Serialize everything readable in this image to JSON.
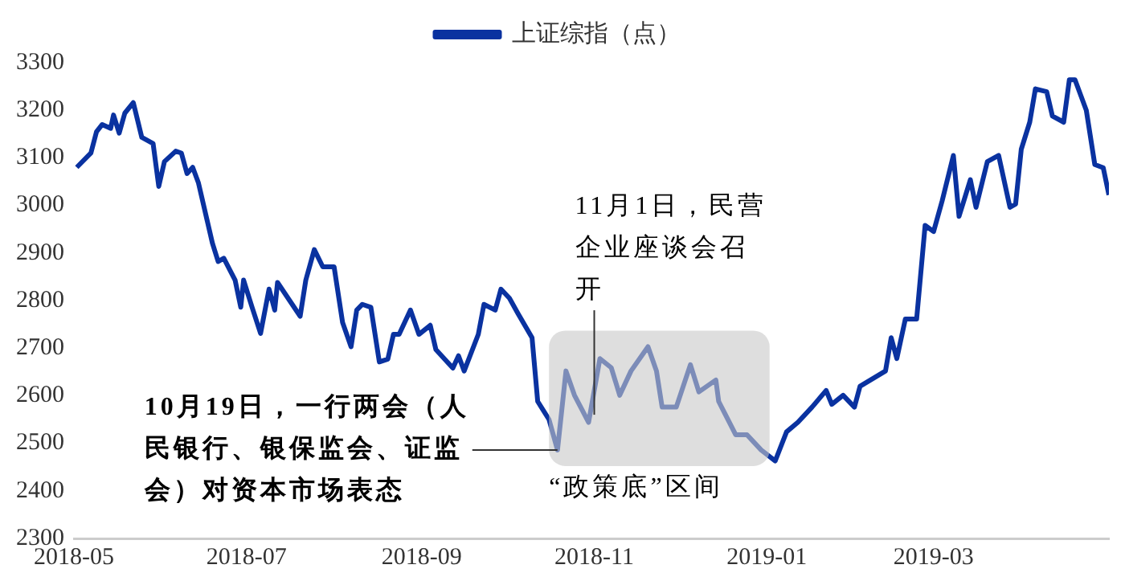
{
  "chart_data": {
    "type": "line",
    "legend": "top",
    "x": [
      "2018-05-02",
      "2018-05-07",
      "2018-05-09",
      "2018-05-11",
      "2018-05-14",
      "2018-05-15",
      "2018-05-17",
      "2018-05-19",
      "2018-05-22",
      "2018-05-25",
      "2018-05-29",
      "2018-05-31",
      "2018-06-02",
      "2018-06-06",
      "2018-06-08",
      "2018-06-10",
      "2018-06-12",
      "2018-06-14",
      "2018-06-19",
      "2018-06-21",
      "2018-06-23",
      "2018-06-27",
      "2018-06-29",
      "2018-06-30",
      "2018-07-03",
      "2018-07-06",
      "2018-07-09",
      "2018-07-11",
      "2018-07-12",
      "2018-07-20",
      "2018-07-22",
      "2018-07-25",
      "2018-07-28",
      "2018-08-01",
      "2018-08-04",
      "2018-08-07",
      "2018-08-09",
      "2018-08-11",
      "2018-08-14",
      "2018-08-17",
      "2018-08-20",
      "2018-08-22",
      "2018-08-24",
      "2018-08-28",
      "2018-08-31",
      "2018-09-04",
      "2018-09-06",
      "2018-09-12",
      "2018-09-14",
      "2018-09-16",
      "2018-09-21",
      "2018-09-23",
      "2018-09-27",
      "2018-09-29",
      "2018-10-02",
      "2018-10-05",
      "2018-10-10",
      "2018-10-12",
      "2018-10-16",
      "2018-10-19",
      "2018-10-22",
      "2018-10-25",
      "2018-10-30",
      "2018-11-03",
      "2018-11-07",
      "2018-11-10",
      "2018-11-14",
      "2018-11-20",
      "2018-11-23",
      "2018-11-25",
      "2018-11-30",
      "2018-12-05",
      "2018-12-08",
      "2018-12-14",
      "2018-12-15",
      "2018-12-21",
      "2018-12-25",
      "2018-12-30",
      "2019-01-04",
      "2019-01-08",
      "2019-01-12",
      "2019-01-17",
      "2019-01-22",
      "2019-01-24",
      "2019-01-28",
      "2019-02-01",
      "2019-02-03",
      "2019-02-12",
      "2019-02-14",
      "2019-02-16",
      "2019-02-19",
      "2019-02-23",
      "2019-02-26",
      "2019-03-01",
      "2019-03-04",
      "2019-03-08",
      "2019-03-10",
      "2019-03-14",
      "2019-03-16",
      "2019-03-20",
      "2019-03-24",
      "2019-03-28",
      "2019-03-30",
      "2019-04-01",
      "2019-04-04",
      "2019-04-06",
      "2019-04-10",
      "2019-04-12",
      "2019-04-16",
      "2019-04-18",
      "2019-04-20",
      "2019-04-24",
      "2019-04-27",
      "2019-04-30",
      "2019-05-02"
    ],
    "series": [
      {
        "name": "上证综指（点）",
        "color": "#0a32a0",
        "values": [
          3080,
          3110,
          3155,
          3170,
          3162,
          3190,
          3152,
          3194,
          3216,
          3143,
          3130,
          3040,
          3092,
          3114,
          3110,
          3067,
          3080,
          3048,
          2920,
          2882,
          2889,
          2843,
          2786,
          2843,
          2786,
          2731,
          2824,
          2780,
          2838,
          2767,
          2843,
          2907,
          2871,
          2871,
          2754,
          2703,
          2780,
          2792,
          2786,
          2671,
          2677,
          2729,
          2729,
          2780,
          2729,
          2748,
          2697,
          2658,
          2684,
          2652,
          2729,
          2792,
          2780,
          2824,
          2805,
          2773,
          2722,
          2588,
          2550,
          2486,
          2652,
          2601,
          2544,
          2678,
          2659,
          2601,
          2652,
          2703,
          2652,
          2576,
          2576,
          2665,
          2608,
          2633,
          2588,
          2518,
          2518,
          2486,
          2463,
          2524,
          2544,
          2576,
          2611,
          2582,
          2601,
          2576,
          2620,
          2652,
          2722,
          2678,
          2761,
          2761,
          2958,
          2945,
          3009,
          3105,
          2977,
          3054,
          2996,
          3092,
          3105,
          2996,
          3003,
          3118,
          3175,
          3245,
          3239,
          3188,
          3175,
          3264,
          3264,
          3200,
          3086,
          3079,
          3022
        ]
      }
    ],
    "xlim": [
      "2018-05-01",
      "2019-05-02"
    ],
    "xticks": [
      "2018-05",
      "2018-07",
      "2018-09",
      "2018-11",
      "2019-01",
      "2019-03"
    ],
    "ylim": [
      2300,
      3300
    ],
    "yticks": [
      2300,
      2400,
      2500,
      2600,
      2700,
      2800,
      2900,
      3000,
      3100,
      3200,
      3300
    ],
    "bands": [
      {
        "axis": "x",
        "from": "2018-10-16",
        "to": "2019-01-02",
        "label": "“政策底”区间",
        "color": "#c8c8c8"
      }
    ],
    "annotations": [
      {
        "text": "10月19日，一行两会（人民银行、银保监会、证监会）对资本市场表态",
        "x": "2018-10-19",
        "y": 2486
      },
      {
        "text": "11月1日，民营企业座谈会召开",
        "x": "2018-11-01",
        "y": 2560
      }
    ]
  }
}
